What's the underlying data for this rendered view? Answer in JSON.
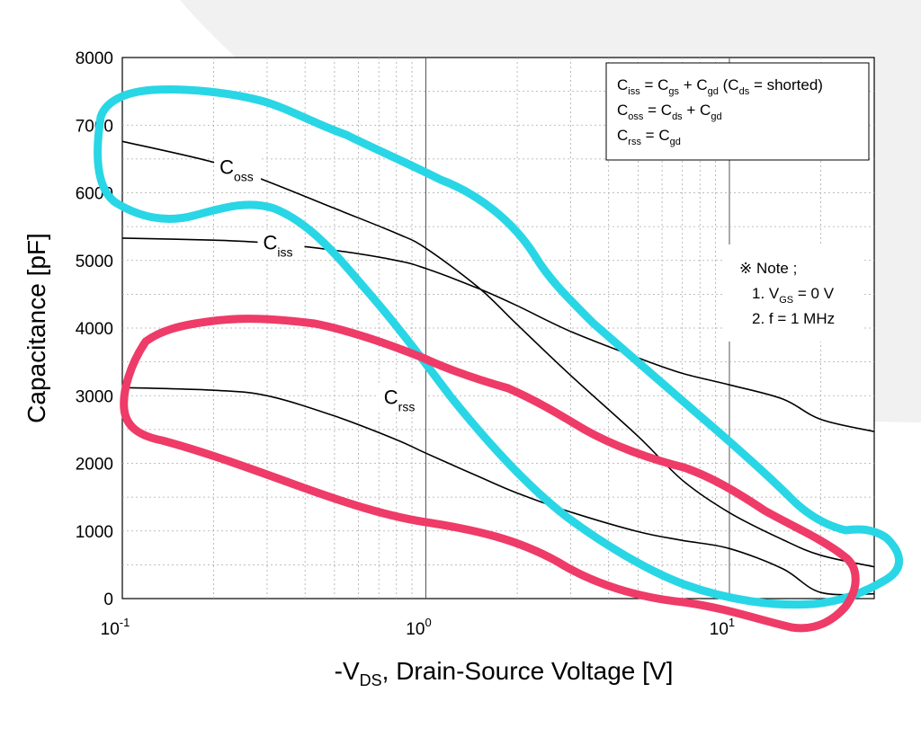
{
  "chart_data": {
    "type": "line",
    "xlabel": {
      "prefix": "-V",
      "sub": "DS",
      "suffix": ", Drain-Source Voltage [V]"
    },
    "ylabel": "Capacitance [pF]",
    "xscale": "log",
    "xlim": [
      0.1,
      30
    ],
    "ylim": [
      0,
      8000
    ],
    "yticks": [
      "0",
      "1000",
      "2000",
      "3000",
      "4000",
      "5000",
      "6000",
      "7000",
      "8000"
    ],
    "xticks": [
      {
        "base": "10",
        "exp": "-1"
      },
      {
        "base": "10",
        "exp": "0"
      },
      {
        "base": "10",
        "exp": "1"
      }
    ],
    "grid": true,
    "series": [
      {
        "name": "Ciss",
        "label_base": "C",
        "label_sub": "iss",
        "x": [
          0.1,
          0.2,
          0.3,
          0.5,
          0.8,
          1.0,
          1.5,
          2,
          3,
          5,
          7,
          10,
          15,
          20,
          30
        ],
        "y": [
          5330,
          5300,
          5260,
          5150,
          5000,
          4880,
          4580,
          4330,
          3950,
          3560,
          3330,
          3160,
          2950,
          2650,
          2470
        ]
      },
      {
        "name": "Coss",
        "label_base": "C",
        "label_sub": "oss",
        "x": [
          0.1,
          0.2,
          0.3,
          0.5,
          0.8,
          1.0,
          1.5,
          2,
          3,
          5,
          7,
          10,
          15,
          20,
          30
        ],
        "y": [
          6760,
          6450,
          6170,
          5770,
          5400,
          5180,
          4590,
          4050,
          3300,
          2400,
          1750,
          1270,
          870,
          640,
          470
        ]
      },
      {
        "name": "Crss",
        "label_base": "C",
        "label_sub": "rss",
        "x": [
          0.1,
          0.2,
          0.3,
          0.5,
          0.8,
          1.0,
          1.5,
          2,
          3,
          5,
          7,
          10,
          15,
          20,
          30
        ],
        "y": [
          3120,
          3080,
          3000,
          2700,
          2350,
          2150,
          1800,
          1560,
          1280,
          990,
          860,
          740,
          440,
          90,
          70
        ]
      }
    ],
    "legend_box": {
      "lines": [
        [
          {
            "t": "C"
          },
          {
            "s": "iss"
          },
          {
            "t": " = C"
          },
          {
            "s": "gs"
          },
          {
            "t": " + C"
          },
          {
            "s": "gd"
          },
          {
            "t": " (C"
          },
          {
            "s": "ds"
          },
          {
            "t": " = shorted)"
          }
        ],
        [
          {
            "t": "C"
          },
          {
            "s": "oss"
          },
          {
            "t": " = C"
          },
          {
            "s": "ds"
          },
          {
            "t": " + C"
          },
          {
            "s": "gd"
          }
        ],
        [
          {
            "t": "C"
          },
          {
            "s": "rss"
          },
          {
            "t": " = C"
          },
          {
            "s": "gd"
          }
        ]
      ]
    },
    "note": {
      "lines": [
        [
          {
            "t": "※ Note ;"
          }
        ],
        [
          {
            "t": "1. V"
          },
          {
            "s": "GS"
          },
          {
            "t": " = 0 V"
          }
        ],
        [
          {
            "t": "2. f = 1 MHz"
          }
        ]
      ]
    },
    "annotations": [
      {
        "name": "cyan-loop",
        "color": "#29d6e6"
      },
      {
        "name": "pink-loop",
        "color": "#ee3b68"
      }
    ]
  }
}
